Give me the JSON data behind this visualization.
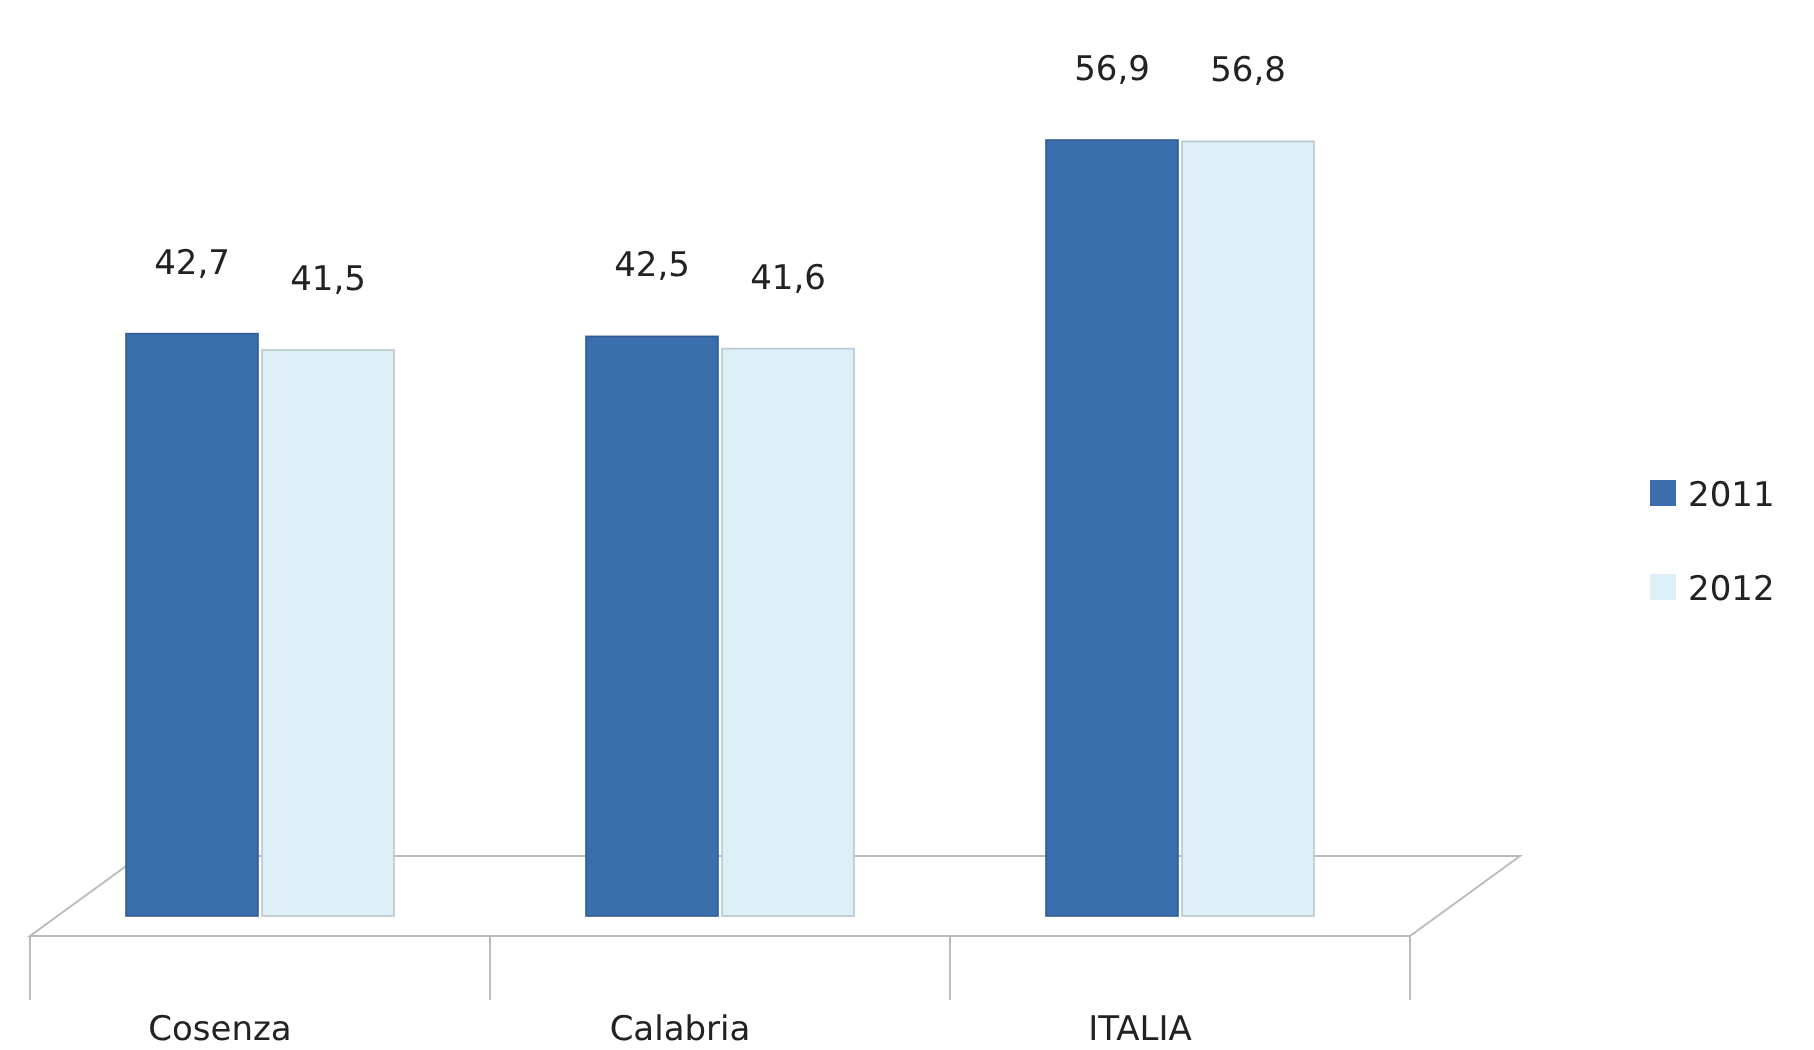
{
  "chart_data": {
    "type": "bar",
    "categories": [
      "Cosenza",
      "Calabria",
      "ITALIA"
    ],
    "series": [
      {
        "name": "2011",
        "color": "#3a6eac",
        "values": [
          42.7,
          42.5,
          56.9
        ],
        "value_labels": [
          "42,7",
          "42,5",
          "56,9"
        ]
      },
      {
        "name": "2012",
        "color": "#dceef6",
        "values": [
          41.5,
          41.6,
          56.8
        ],
        "value_labels": [
          "41,5",
          "41,6",
          "56,8"
        ]
      }
    ],
    "relative": false,
    "legend": "right",
    "grid": false
  }
}
